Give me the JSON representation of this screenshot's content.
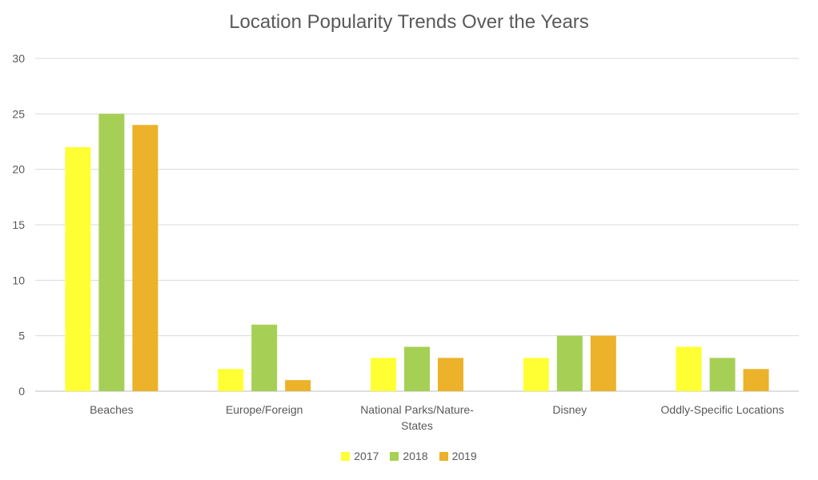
{
  "chart_data": {
    "type": "bar",
    "title": "Location Popularity Trends Over the Years",
    "xlabel": "",
    "ylabel": "",
    "ylim": [
      0,
      30
    ],
    "yticks": [
      0,
      5,
      10,
      15,
      20,
      25,
      30
    ],
    "grid": true,
    "legend_position": "bottom",
    "categories": [
      [
        "Beaches"
      ],
      [
        "Europe/Foreign"
      ],
      [
        "National Parks/Nature-",
        "States"
      ],
      [
        "Disney"
      ],
      [
        "Oddly-Specific Locations"
      ]
    ],
    "series": [
      {
        "name": "2017",
        "color": "#FFFF33",
        "values": [
          22,
          2,
          3,
          3,
          4
        ]
      },
      {
        "name": "2018",
        "color": "#A5D055",
        "values": [
          25,
          6,
          4,
          5,
          3
        ]
      },
      {
        "name": "2019",
        "color": "#EBB22A",
        "values": [
          24,
          1,
          3,
          5,
          2
        ]
      }
    ]
  }
}
